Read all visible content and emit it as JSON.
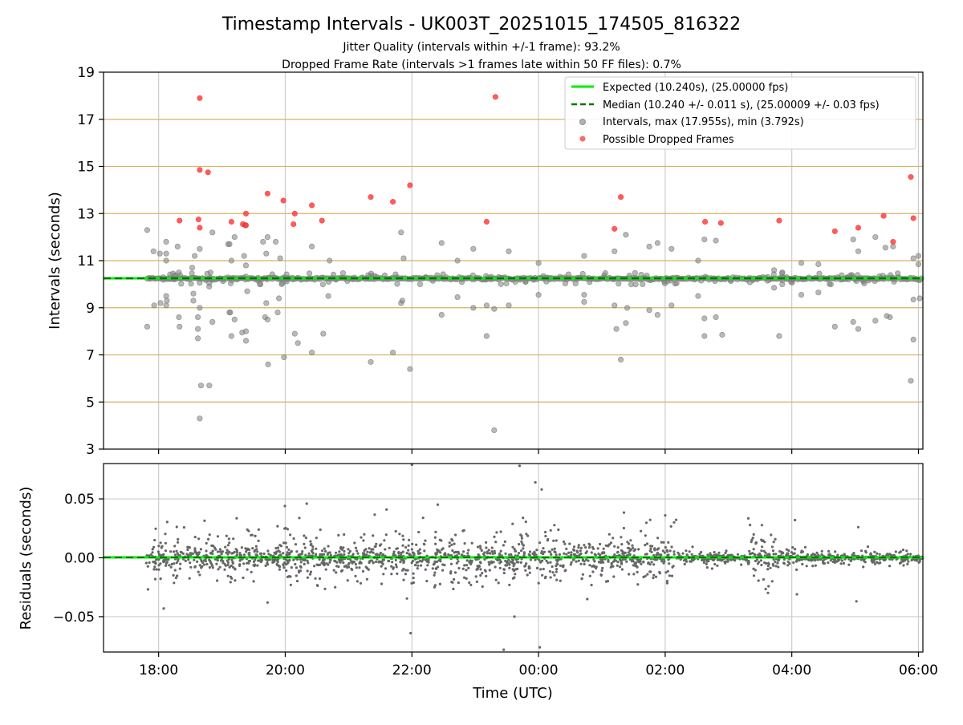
{
  "chart_data": [
    {
      "type": "scatter",
      "title": "Timestamp Intervals - UK003T_20251015_174505_816322",
      "subtitle_line1": "Jitter Quality (intervals within +/-1 frame): 93.2%",
      "subtitle_line2": "Dropped Frame Rate (intervals >1 frames late within 50 FF files): 0.7%",
      "xlabel": "",
      "ylabel": "Intervals (seconds)",
      "xlim_hours": [
        17.13,
        30.07
      ],
      "ylim": [
        3,
        19
      ],
      "yticks": [
        3,
        5,
        7,
        9,
        11,
        13,
        15,
        17,
        19
      ],
      "ytick_labels": [
        "3",
        "5",
        "7",
        "9",
        "11",
        "13",
        "15",
        "17",
        "19"
      ],
      "xticks_hours": [
        18,
        20,
        22,
        24,
        26,
        28,
        30
      ],
      "grid": "vertical + horizontal at odd seconds",
      "legend_position": "top-right",
      "legend": [
        "Expected (10.240s), (25.00000 fps)",
        "Median (10.240 +/- 0.011 s), (25.00009 +/- 0.03 fps)",
        "Intervals, max (17.955s), min (3.792s)",
        "Possible Dropped Frames"
      ],
      "expected_interval": 10.24,
      "median_interval": 10.24,
      "colors": {
        "expected": "#00ee00",
        "median": "#007700",
        "intervals": "#808080",
        "dropped": "#ff3333",
        "hgrid": "#d4b566",
        "vgrid": "#cccccc"
      },
      "series_intervals": [
        {
          "t": 17.82,
          "v": 12.3
        },
        {
          "t": 17.82,
          "v": 8.2
        },
        {
          "t": 17.92,
          "v": 11.4
        },
        {
          "t": 17.93,
          "v": 9.1
        },
        {
          "t": 18.02,
          "v": 11.3
        },
        {
          "t": 18.03,
          "v": 9.2
        },
        {
          "t": 18.12,
          "v": 11.8
        },
        {
          "t": 18.12,
          "v": 11.3
        },
        {
          "t": 18.12,
          "v": 11.0
        },
        {
          "t": 18.12,
          "v": 9.5
        },
        {
          "t": 18.12,
          "v": 9.1
        },
        {
          "t": 18.13,
          "v": 9.3
        },
        {
          "t": 18.3,
          "v": 11.6
        },
        {
          "t": 18.32,
          "v": 10.5
        },
        {
          "t": 18.32,
          "v": 8.6
        },
        {
          "t": 18.33,
          "v": 8.2
        },
        {
          "t": 18.53,
          "v": 10.7
        },
        {
          "t": 18.55,
          "v": 9.6
        },
        {
          "t": 18.55,
          "v": 9.3
        },
        {
          "t": 18.57,
          "v": 11.2
        },
        {
          "t": 18.62,
          "v": 8.6
        },
        {
          "t": 18.62,
          "v": 8.1
        },
        {
          "t": 18.62,
          "v": 7.7
        },
        {
          "t": 18.65,
          "v": 11.5
        },
        {
          "t": 18.65,
          "v": 9.0
        },
        {
          "t": 18.67,
          "v": 5.7
        },
        {
          "t": 18.65,
          "v": 4.3
        },
        {
          "t": 18.8,
          "v": 5.7
        },
        {
          "t": 18.82,
          "v": 10.5
        },
        {
          "t": 18.8,
          "v": 9.9
        },
        {
          "t": 18.85,
          "v": 12.2
        },
        {
          "t": 18.85,
          "v": 8.4
        },
        {
          "t": 19.1,
          "v": 11.7
        },
        {
          "t": 19.12,
          "v": 11.7
        },
        {
          "t": 19.2,
          "v": 12.0
        },
        {
          "t": 19.15,
          "v": 11.0
        },
        {
          "t": 19.13,
          "v": 8.8
        },
        {
          "t": 19.12,
          "v": 8.8
        },
        {
          "t": 19.2,
          "v": 8.5
        },
        {
          "t": 19.15,
          "v": 7.8
        },
        {
          "t": 19.32,
          "v": 7.95
        },
        {
          "t": 19.38,
          "v": 8.0
        },
        {
          "t": 19.38,
          "v": 7.6
        },
        {
          "t": 19.37,
          "v": 12.5
        },
        {
          "t": 19.35,
          "v": 11.2
        },
        {
          "t": 19.38,
          "v": 10.8
        },
        {
          "t": 19.4,
          "v": 9.7
        },
        {
          "t": 19.6,
          "v": 10.0
        },
        {
          "t": 19.65,
          "v": 11.8
        },
        {
          "t": 19.72,
          "v": 12.0
        },
        {
          "t": 19.7,
          "v": 11.3
        },
        {
          "t": 19.68,
          "v": 8.6
        },
        {
          "t": 19.72,
          "v": 8.5
        },
        {
          "t": 19.7,
          "v": 9.2
        },
        {
          "t": 19.73,
          "v": 6.6
        },
        {
          "t": 19.85,
          "v": 11.8
        },
        {
          "t": 19.92,
          "v": 11.1
        },
        {
          "t": 19.9,
          "v": 9.4
        },
        {
          "t": 19.88,
          "v": 8.8
        },
        {
          "t": 19.98,
          "v": 6.9
        },
        {
          "t": 20.15,
          "v": 7.9
        },
        {
          "t": 20.2,
          "v": 7.5
        },
        {
          "t": 20.42,
          "v": 11.6
        },
        {
          "t": 20.42,
          "v": 7.1
        },
        {
          "t": 20.6,
          "v": 7.9
        },
        {
          "t": 20.68,
          "v": 9.5
        },
        {
          "t": 20.7,
          "v": 11.0
        },
        {
          "t": 21.35,
          "v": 6.7
        },
        {
          "t": 21.7,
          "v": 7.1
        },
        {
          "t": 21.83,
          "v": 12.2
        },
        {
          "t": 21.87,
          "v": 11.1
        },
        {
          "t": 21.83,
          "v": 9.2
        },
        {
          "t": 21.85,
          "v": 9.3
        },
        {
          "t": 21.97,
          "v": 6.4
        },
        {
          "t": 22.13,
          "v": 10.0
        },
        {
          "t": 22.47,
          "v": 11.75
        },
        {
          "t": 22.47,
          "v": 8.7
        },
        {
          "t": 22.72,
          "v": 11.0
        },
        {
          "t": 22.72,
          "v": 9.45
        },
        {
          "t": 22.97,
          "v": 11.5
        },
        {
          "t": 22.97,
          "v": 9.0
        },
        {
          "t": 23.18,
          "v": 7.8
        },
        {
          "t": 23.18,
          "v": 9.1
        },
        {
          "t": 23.3,
          "v": 3.8
        },
        {
          "t": 23.3,
          "v": 8.95
        },
        {
          "t": 23.53,
          "v": 11.4
        },
        {
          "t": 23.53,
          "v": 9.1
        },
        {
          "t": 24.0,
          "v": 10.9
        },
        {
          "t": 24.0,
          "v": 9.55
        },
        {
          "t": 24.72,
          "v": 11.2
        },
        {
          "t": 24.72,
          "v": 9.55
        },
        {
          "t": 24.72,
          "v": 9.25
        },
        {
          "t": 25.2,
          "v": 11.4
        },
        {
          "t": 25.2,
          "v": 9.1
        },
        {
          "t": 25.23,
          "v": 8.1
        },
        {
          "t": 25.38,
          "v": 12.1
        },
        {
          "t": 25.4,
          "v": 9.0
        },
        {
          "t": 25.38,
          "v": 8.35
        },
        {
          "t": 25.3,
          "v": 6.8
        },
        {
          "t": 25.75,
          "v": 11.6
        },
        {
          "t": 25.75,
          "v": 8.9
        },
        {
          "t": 25.88,
          "v": 11.75
        },
        {
          "t": 25.88,
          "v": 8.7
        },
        {
          "t": 26.1,
          "v": 11.5
        },
        {
          "t": 26.1,
          "v": 9.1
        },
        {
          "t": 26.52,
          "v": 11.0
        },
        {
          "t": 26.52,
          "v": 9.5
        },
        {
          "t": 26.62,
          "v": 11.9
        },
        {
          "t": 26.62,
          "v": 8.55
        },
        {
          "t": 26.62,
          "v": 7.8
        },
        {
          "t": 26.8,
          "v": 11.85
        },
        {
          "t": 26.8,
          "v": 8.6
        },
        {
          "t": 26.9,
          "v": 7.85
        },
        {
          "t": 27.72,
          "v": 10.6
        },
        {
          "t": 27.72,
          "v": 9.85
        },
        {
          "t": 27.85,
          "v": 10.5
        },
        {
          "t": 27.85,
          "v": 10.0
        },
        {
          "t": 27.8,
          "v": 7.8
        },
        {
          "t": 28.15,
          "v": 10.9
        },
        {
          "t": 28.15,
          "v": 9.55
        },
        {
          "t": 28.42,
          "v": 10.85
        },
        {
          "t": 28.42,
          "v": 9.65
        },
        {
          "t": 28.68,
          "v": 8.2
        },
        {
          "t": 28.97,
          "v": 11.9
        },
        {
          "t": 28.97,
          "v": 8.4
        },
        {
          "t": 29.05,
          "v": 11.4
        },
        {
          "t": 29.05,
          "v": 8.1
        },
        {
          "t": 29.32,
          "v": 12.0
        },
        {
          "t": 29.32,
          "v": 8.45
        },
        {
          "t": 29.48,
          "v": 11.55
        },
        {
          "t": 29.5,
          "v": 8.65
        },
        {
          "t": 29.6,
          "v": 11.6
        },
        {
          "t": 29.55,
          "v": 8.6
        },
        {
          "t": 29.88,
          "v": 5.9
        },
        {
          "t": 29.92,
          "v": 7.65
        },
        {
          "t": 29.92,
          "v": 11.1
        },
        {
          "t": 29.92,
          "v": 9.35
        },
        {
          "t": 30.0,
          "v": 11.2
        },
        {
          "t": 30.0,
          "v": 10.85
        },
        {
          "t": 30.02,
          "v": 9.4
        }
      ],
      "series_dropped_frames": [
        {
          "t": 18.33,
          "v": 12.7
        },
        {
          "t": 18.65,
          "v": 17.9
        },
        {
          "t": 18.65,
          "v": 14.85
        },
        {
          "t": 18.63,
          "v": 12.75
        },
        {
          "t": 18.65,
          "v": 12.4
        },
        {
          "t": 18.78,
          "v": 14.75
        },
        {
          "t": 19.15,
          "v": 12.65
        },
        {
          "t": 19.33,
          "v": 12.55
        },
        {
          "t": 19.38,
          "v": 12.5
        },
        {
          "t": 19.38,
          "v": 13.0
        },
        {
          "t": 19.72,
          "v": 13.85
        },
        {
          "t": 19.97,
          "v": 13.55
        },
        {
          "t": 20.15,
          "v": 13.0
        },
        {
          "t": 20.13,
          "v": 12.55
        },
        {
          "t": 20.42,
          "v": 13.35
        },
        {
          "t": 20.58,
          "v": 12.7
        },
        {
          "t": 21.35,
          "v": 13.7
        },
        {
          "t": 21.7,
          "v": 13.5
        },
        {
          "t": 21.97,
          "v": 14.2
        },
        {
          "t": 23.18,
          "v": 12.65
        },
        {
          "t": 23.32,
          "v": 17.95
        },
        {
          "t": 25.2,
          "v": 12.35
        },
        {
          "t": 25.3,
          "v": 13.7
        },
        {
          "t": 26.63,
          "v": 12.65
        },
        {
          "t": 26.88,
          "v": 12.6
        },
        {
          "t": 27.8,
          "v": 12.7
        },
        {
          "t": 28.68,
          "v": 12.25
        },
        {
          "t": 29.05,
          "v": 12.4
        },
        {
          "t": 29.45,
          "v": 12.9
        },
        {
          "t": 29.6,
          "v": 11.8
        },
        {
          "t": 29.88,
          "v": 14.55
        },
        {
          "t": 29.92,
          "v": 12.8
        }
      ]
    },
    {
      "type": "scatter",
      "ylabel": "Residuals (seconds)",
      "xlabel": "Time (UTC)",
      "ylim": [
        -0.08,
        0.08
      ],
      "yticks": [
        -0.05,
        0.0,
        0.05
      ],
      "ytick_labels": [
        "−0.05",
        "0.00",
        "0.05"
      ],
      "xlim_hours": [
        17.13,
        30.07
      ],
      "xticks_hours": [
        18,
        20,
        22,
        24,
        26,
        28,
        30
      ],
      "xtick_labels": [
        "18:00",
        "20:00",
        "22:00",
        "00:00",
        "02:00",
        "04:00",
        "06:00"
      ],
      "grid": "vertical + horizontal",
      "zero_line": 0.0,
      "colors": {
        "points": "#666666",
        "zero": "#00ee00",
        "zero_dash": "#007700",
        "grid": "#cccccc"
      },
      "noise_bands": [
        {
          "t_start": 17.8,
          "t_end": 19.6,
          "spread": 0.028
        },
        {
          "t_start": 19.6,
          "t_end": 19.85,
          "spread": 0.01
        },
        {
          "t_start": 19.85,
          "t_end": 26.2,
          "spread": 0.03
        },
        {
          "t_start": 26.2,
          "t_end": 27.3,
          "spread": 0.008
        },
        {
          "t_start": 27.3,
          "t_end": 27.75,
          "spread": 0.025
        },
        {
          "t_start": 27.75,
          "t_end": 29.3,
          "spread": 0.008
        },
        {
          "t_start": 29.3,
          "t_end": 30.07,
          "spread": 0.006
        }
      ],
      "outliers": [
        {
          "t": 22.0,
          "v": 0.079
        },
        {
          "t": 23.7,
          "v": 0.078
        },
        {
          "t": 23.95,
          "v": 0.064
        },
        {
          "t": 24.05,
          "v": 0.058
        },
        {
          "t": 23.62,
          "v": -0.05
        },
        {
          "t": 23.45,
          "v": -0.078
        },
        {
          "t": 24.02,
          "v": -0.076
        },
        {
          "t": 21.98,
          "v": -0.064
        },
        {
          "t": 18.08,
          "v": -0.043
        },
        {
          "t": 19.72,
          "v": -0.038
        },
        {
          "t": 28.05,
          "v": 0.032
        },
        {
          "t": 29.05,
          "v": 0.026
        },
        {
          "t": 29.02,
          "v": -0.037
        },
        {
          "t": 28.08,
          "v": -0.031
        },
        {
          "t": 26.0,
          "v": 0.036
        },
        {
          "t": 21.6,
          "v": 0.041
        }
      ]
    }
  ]
}
